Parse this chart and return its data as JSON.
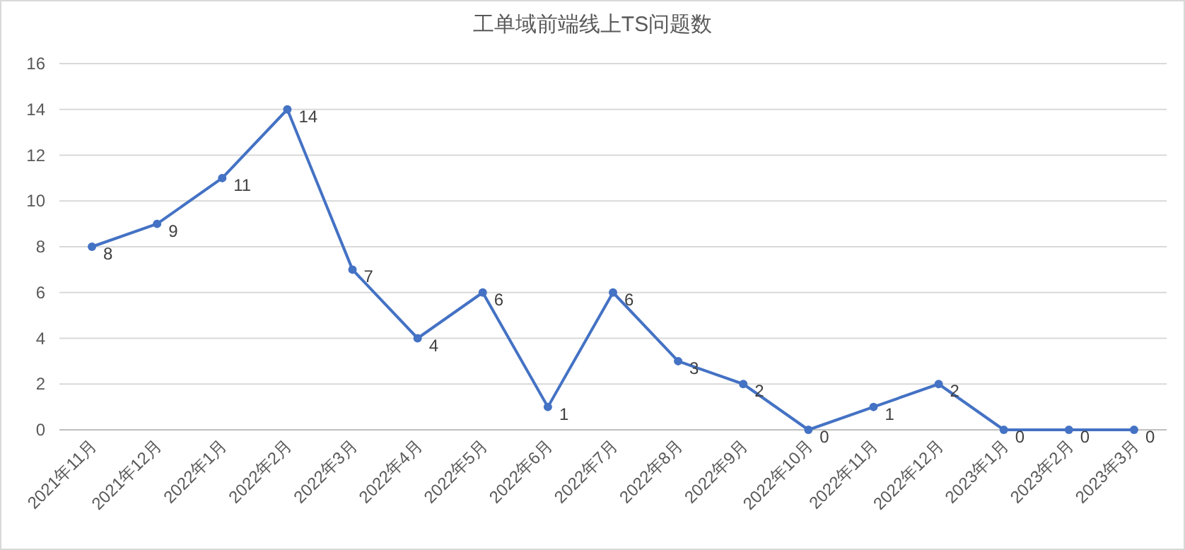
{
  "chart_data": {
    "type": "line",
    "title": "工单域前端线上TS问题数",
    "categories": [
      "2021年11月",
      "2021年12月",
      "2022年1月",
      "2022年2月",
      "2022年3月",
      "2022年4月",
      "2022年5月",
      "2022年6月",
      "2022年7月",
      "2022年8月",
      "2022年9月",
      "2022年10月",
      "2022年11月",
      "2022年12月",
      "2023年1月",
      "2023年2月",
      "2023年3月"
    ],
    "series": [
      {
        "color": "#4472c4",
        "values": [
          8,
          9,
          11,
          14,
          7,
          4,
          6,
          1,
          6,
          3,
          2,
          0,
          1,
          2,
          0,
          0,
          0
        ]
      }
    ],
    "ylim": [
      0,
      16
    ],
    "yticks": [
      0,
      2,
      4,
      6,
      8,
      10,
      12,
      14,
      16
    ],
    "grid": "y",
    "data_labels": true,
    "marker": "circle",
    "line_style": "solid"
  }
}
